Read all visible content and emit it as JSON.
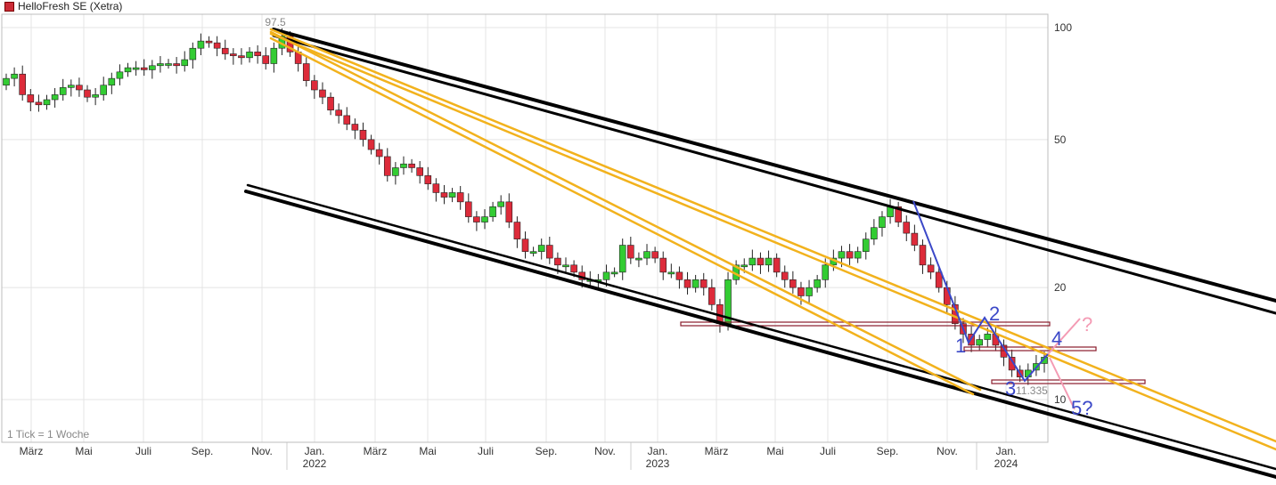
{
  "legend": {
    "label": "HelloFresh SE (Xetra)",
    "color": "#cc2b37"
  },
  "footnote": "1 Tick = 1 Woche",
  "chart_data": {
    "type": "candlestick",
    "scale": "log",
    "ylim": [
      7.5,
      120
    ],
    "yticks": [
      {
        "value": 100,
        "label": "100"
      },
      {
        "value": 50,
        "label": "50"
      },
      {
        "value": 20,
        "label": "20"
      },
      {
        "value": 10,
        "label": "10"
      }
    ],
    "xticks": [
      {
        "label": "März",
        "year": ""
      },
      {
        "label": "Mai",
        "year": ""
      },
      {
        "label": "Juli",
        "year": ""
      },
      {
        "label": "Sep.",
        "year": ""
      },
      {
        "label": "Nov.",
        "year": ""
      },
      {
        "label": "Jan.",
        "year": "2022"
      },
      {
        "label": "März",
        "year": ""
      },
      {
        "label": "Mai",
        "year": ""
      },
      {
        "label": "Juli",
        "year": ""
      },
      {
        "label": "Sep.",
        "year": ""
      },
      {
        "label": "Nov.",
        "year": ""
      },
      {
        "label": "Jan.",
        "year": "2023"
      },
      {
        "label": "März",
        "year": ""
      },
      {
        "label": "Mai",
        "year": ""
      },
      {
        "label": "Juli",
        "year": ""
      },
      {
        "label": "Sep.",
        "year": ""
      },
      {
        "label": "Nov.",
        "year": ""
      },
      {
        "label": "Jan.",
        "year": "2024"
      }
    ],
    "annotations": {
      "high_label": "97.5",
      "low_label": "11.335",
      "wave_labels": [
        "1",
        "2",
        "3",
        "4",
        "5?",
        "?"
      ]
    },
    "colors": {
      "up": "#33cc33",
      "down": "#dd2b3a",
      "channel": "#000000",
      "fan": "#f2b21d",
      "wave": "#3b48c8",
      "alt": "#f49bb4",
      "zone": "#8a1c2b"
    },
    "close_path": [
      73,
      75,
      66,
      63,
      62,
      64,
      66,
      69,
      70,
      68,
      65,
      66,
      70,
      73,
      76,
      78,
      78,
      77,
      79,
      80,
      80,
      79,
      82,
      88,
      92,
      91,
      88,
      85,
      84,
      83,
      86,
      84,
      80,
      88,
      95,
      86,
      80,
      72,
      68,
      65,
      60,
      58,
      55,
      53,
      50,
      47,
      45,
      40,
      42,
      43,
      42,
      40,
      38,
      36,
      35,
      36,
      34,
      31,
      30,
      31,
      33,
      34,
      30,
      27,
      25,
      25,
      26,
      24,
      23,
      23,
      22,
      21,
      21,
      21,
      22,
      22,
      26,
      24,
      24,
      25,
      24,
      22,
      22,
      21,
      20,
      21,
      20,
      18,
      16,
      21,
      23,
      23,
      24,
      23,
      24,
      22,
      21,
      20,
      19,
      20,
      21,
      23,
      24,
      25,
      24,
      25,
      27,
      29,
      31,
      33,
      30,
      28,
      26,
      23,
      22,
      20,
      18,
      16,
      15,
      14,
      14.5,
      15,
      14,
      13,
      12,
      11.5,
      12,
      12.5,
      13
    ],
    "open_start": 70
  }
}
